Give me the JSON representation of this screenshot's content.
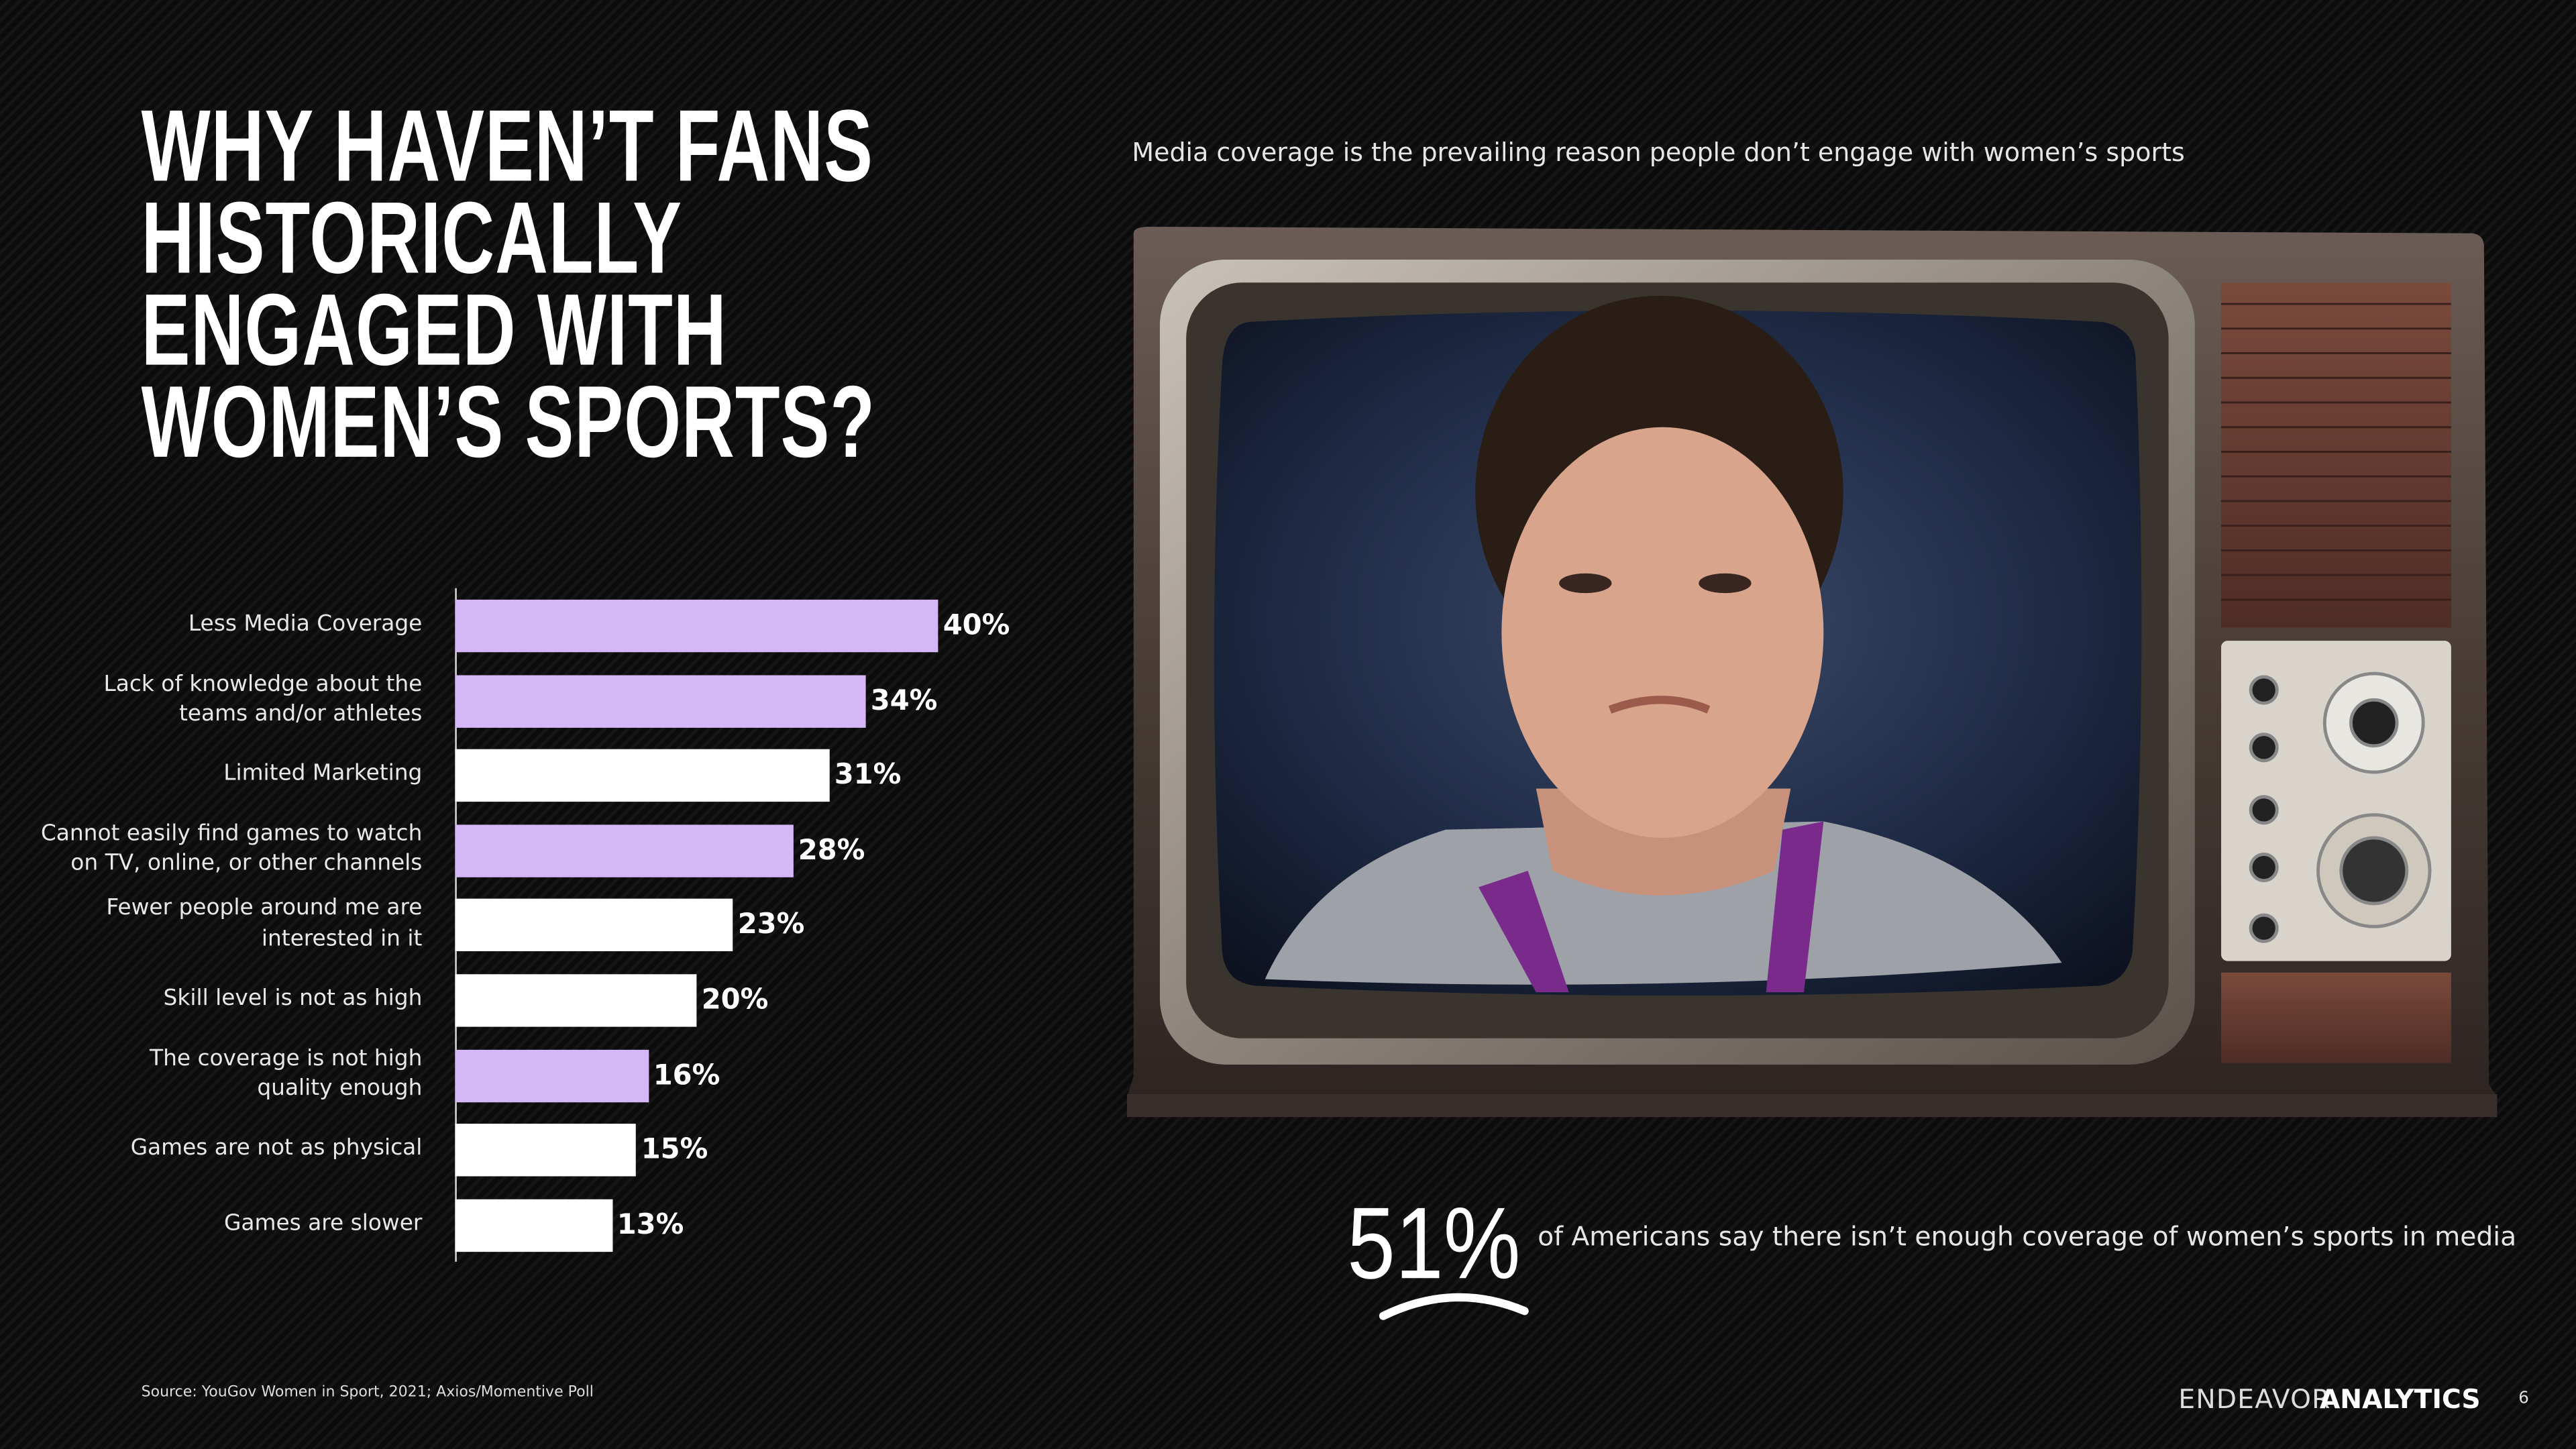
{
  "header": {
    "title": "WHY HAVEN’T FANS\nHISTORICALLY\nENGAGED WITH\nWOMEN’S SPORTS?",
    "subtitle": "Media coverage is the prevailing reason people don’t engage with women’s sports"
  },
  "chart_data": {
    "type": "bar",
    "orientation": "horizontal",
    "categories": [
      "Less Media Coverage",
      "Lack of knowledge about the\nteams and/or athletes",
      "Limited Marketing",
      "Cannot easily find games to watch\non TV, online, or other channels",
      "Fewer people around me are\ninterested in it",
      "Skill level is not as high",
      "The coverage is not high\nquality enough",
      "Games are not as physical",
      "Games are slower"
    ],
    "values": [
      40,
      34,
      31,
      28,
      23,
      20,
      16,
      15,
      13
    ],
    "value_labels": [
      "40%",
      "34%",
      "31%",
      "28%",
      "23%",
      "20%",
      "16%",
      "15%",
      "13%"
    ],
    "colors": [
      "#d5b6f7",
      "#d5b6f7",
      "#ffffff",
      "#d5b6f7",
      "#ffffff",
      "#ffffff",
      "#d5b6f7",
      "#ffffff",
      "#ffffff"
    ]
  },
  "callout": {
    "figure": "51%",
    "text": "of Americans say there isn’t enough coverage of women’s sports in media"
  },
  "footer": {
    "source": "Source: YouGov Women in Sport, 2021; Axios/Momentive Poll",
    "brand": "ENDEAVOR",
    "brand_bold": "ANALYTICS",
    "page": "6"
  }
}
